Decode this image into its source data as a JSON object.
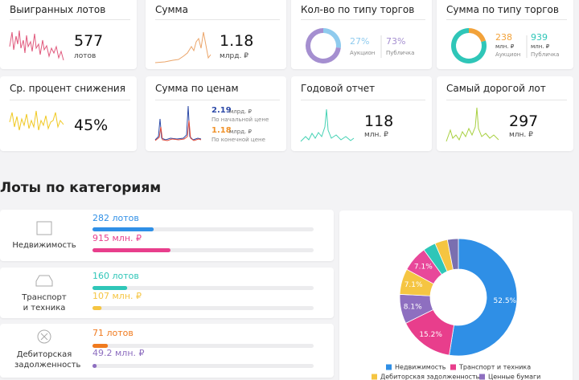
{
  "kpi": [
    {
      "title": "Выигранных лотов",
      "value": 577,
      "unit": "лотов"
    },
    {
      "title": "Сумма",
      "value": 1.18,
      "unit": "млрд. ₽"
    },
    {
      "title": "Кол-во по типу торгов",
      "parts": [
        {
          "value": 27,
          "label": "27%",
          "name": "Аукцион",
          "color": "#8fcbee"
        },
        {
          "value": 73,
          "label": "73%",
          "name": "Публичка",
          "color": "#a58fd0"
        }
      ]
    },
    {
      "title": "Сумма по типу торгов",
      "parts": [
        {
          "value": 238,
          "unit": "млн. ₽",
          "name": "Аукцион",
          "color": "#f2a23a"
        },
        {
          "value": 939,
          "unit": "млн. ₽",
          "name": "Публичка",
          "color": "#2fc6b8"
        }
      ]
    },
    {
      "title": "Ср. процент снижения",
      "value": {
        "value": 45,
        "label": "45%"
      }
    },
    {
      "title": "Сумма по ценам",
      "parts": [
        {
          "value": 2.19,
          "unit": "млрд. ₽",
          "name": "По начальной цене",
          "color": "#2d4aa8"
        },
        {
          "value": 1.18,
          "unit": "млрд. ₽",
          "name": "По конечной цене",
          "color": "#f0922a"
        }
      ]
    },
    {
      "title": "Годовой отчет",
      "value": 118,
      "unit": "млн. ₽"
    },
    {
      "title": "Самый дорогой лот",
      "value": 297,
      "unit": "млн. ₽"
    }
  ],
  "section_title": "Лоты по категориям",
  "categories": [
    {
      "name": "Недвижимость",
      "lots": {
        "value": 282,
        "label": "282 лотов"
      },
      "lots_color": "#2f8fe6",
      "sum": {
        "value": 915,
        "label": "915 млн. ₽"
      },
      "sum_color": "#e83e8c"
    },
    {
      "name": "Транспорт и техника",
      "lots": {
        "value": 160,
        "label": "160 лотов"
      },
      "lots_color": "#2fc6b8",
      "sum": {
        "value": 107,
        "label": "107 млн. ₽"
      },
      "sum_color": "#f5c542"
    },
    {
      "name": "Дебиторская задолженность",
      "lots": {
        "value": 71,
        "label": "71 лотов"
      },
      "lots_color": "#f07a1e",
      "sum": {
        "value": 49.2,
        "label": "49.2 млн. ₽"
      },
      "sum_color": "#8e6fc0"
    }
  ],
  "chart_data": {
    "type": "pie",
    "categories": [
      "Недвижимость",
      "Транспорт и техника",
      "Ценные бумаги",
      "Дебиторская задолженность",
      null,
      null,
      null,
      null
    ],
    "values": [
      52.5,
      15.2,
      8.1,
      7.1,
      7.1,
      3.5,
      3.5,
      3.0
    ],
    "value_labels": [
      "52.5%",
      "15.2%",
      "8.1%",
      "7.1%",
      "7.1%",
      null,
      null,
      null
    ],
    "colors": [
      "#2f8fe6",
      "#e83e8c",
      "#8e6fc0",
      "#f5c542",
      "#e8489a",
      "#2fc6b8",
      "#f5c542",
      "#7a6fb0"
    ],
    "legend": true
  }
}
